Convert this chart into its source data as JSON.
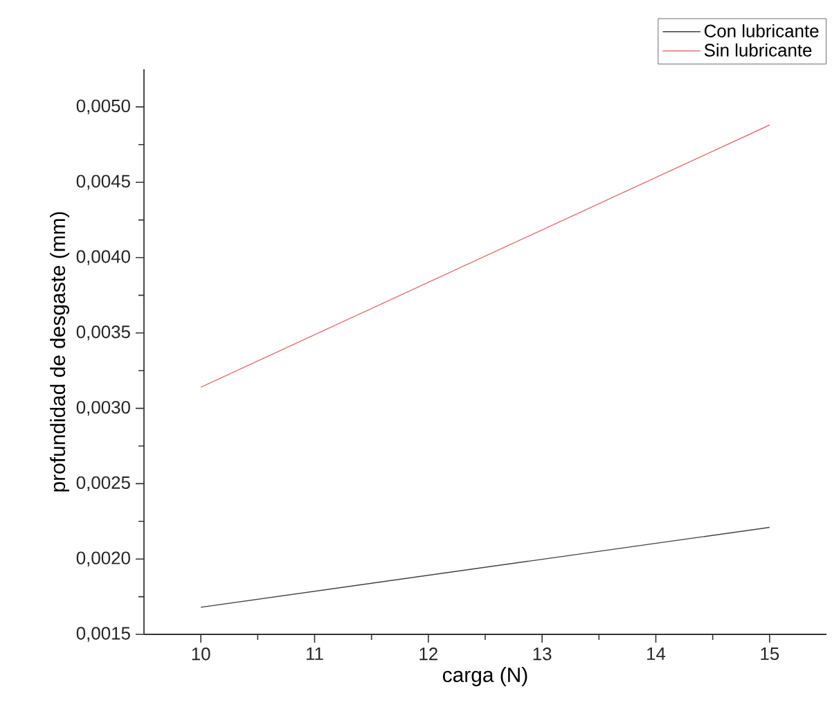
{
  "chart_data": {
    "type": "line",
    "xlabel": "carga (N)",
    "ylabel": "profundidad de desgaste (mm)",
    "x": [
      10,
      15
    ],
    "series": [
      {
        "name": "Con lubricante",
        "color": "#404040",
        "values": [
          0.00168,
          0.00221
        ]
      },
      {
        "name": "Sin lubricante",
        "color": "#e07070",
        "values": [
          0.00314,
          0.00488
        ]
      }
    ],
    "xlim": [
      9.5,
      15.5
    ],
    "ylim": [
      0.0015,
      0.00525
    ],
    "xticks": [
      10,
      11,
      12,
      13,
      14,
      15
    ],
    "yticks": [
      {
        "value": 0.0015,
        "label": "0,0015"
      },
      {
        "value": 0.002,
        "label": "0,0020"
      },
      {
        "value": 0.0025,
        "label": "0,0025"
      },
      {
        "value": 0.003,
        "label": "0,0030"
      },
      {
        "value": 0.0035,
        "label": "0,0035"
      },
      {
        "value": 0.004,
        "label": "0,0040"
      },
      {
        "value": 0.0045,
        "label": "0,0045"
      },
      {
        "value": 0.005,
        "label": "0,0050"
      }
    ],
    "legend": "top right",
    "marker": "none",
    "line_style": "solid",
    "grid": false
  }
}
